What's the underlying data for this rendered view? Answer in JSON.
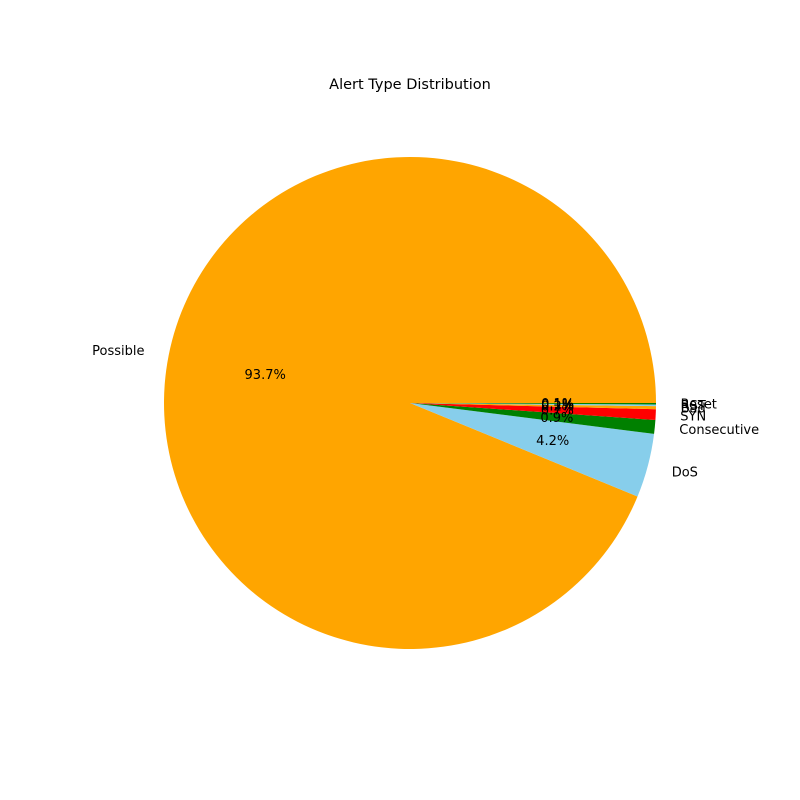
{
  "chart_data": {
    "type": "pie",
    "title": "Alert Type Distribution",
    "start_angle_deg": 0,
    "direction": "counterclockwise",
    "slices": [
      {
        "label": "Possible",
        "value": 93.7,
        "pct_text": "93.7%",
        "color": "#ffa500"
      },
      {
        "label": "DoS",
        "value": 4.2,
        "pct_text": "4.2%",
        "color": "#87ceeb"
      },
      {
        "label": "Consecutive",
        "value": 0.9,
        "pct_text": "0.9%",
        "color": "#008000"
      },
      {
        "label": "SYN",
        "value": 0.7,
        "pct_text": "0.7%",
        "color": "#ff0000"
      },
      {
        "label": "Bad",
        "value": 0.2,
        "pct_text": "0.2%",
        "color": "#ffa500"
      },
      {
        "label": "RST",
        "value": 0.1,
        "pct_text": "0.1%",
        "color": "#87ceeb"
      },
      {
        "label": "Reset",
        "value": 0.1,
        "pct_text": "0.1%",
        "color": "#008000"
      }
    ]
  }
}
